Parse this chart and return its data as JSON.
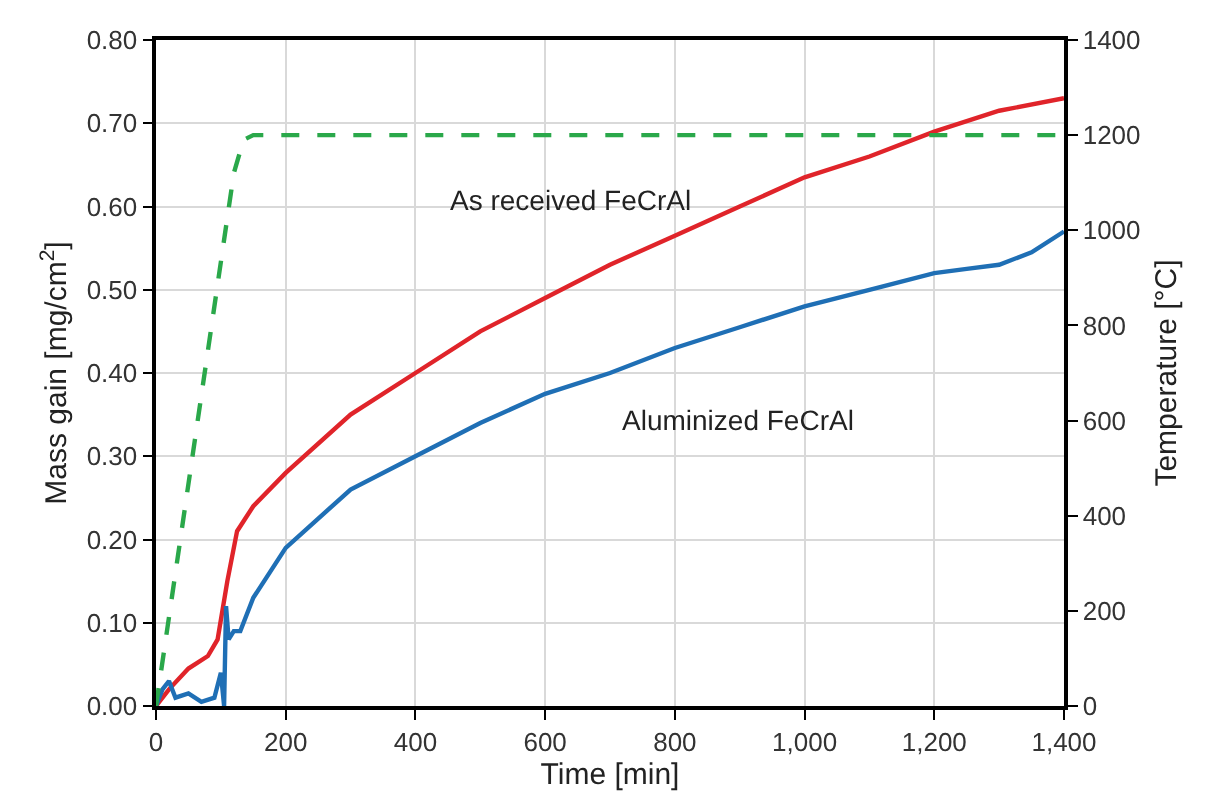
{
  "chart_data": {
    "type": "line",
    "xlabel": "Time [min]",
    "ylabel": "Mass gain [mg/cm$^{2}$]",
    "y2label": "Temperature [°C]",
    "xlim": [
      0,
      1400
    ],
    "xticks": [
      0,
      200,
      400,
      600,
      800,
      {
        "value": 1000,
        "label": "1,000"
      },
      {
        "value": 1200,
        "label": "1,200"
      },
      {
        "value": 1400,
        "label": "1,400"
      }
    ],
    "ylim": [
      0,
      0.8
    ],
    "yticks": [
      {
        "value": 0,
        "label": "0.00"
      },
      {
        "value": 0.1,
        "label": "0.10"
      },
      {
        "value": 0.2,
        "label": "0.20"
      },
      {
        "value": 0.3,
        "label": "0.30"
      },
      {
        "value": 0.4,
        "label": "0.40"
      },
      {
        "value": 0.5,
        "label": "0.50"
      },
      {
        "value": 0.6,
        "label": "0.60"
      },
      {
        "value": 0.7,
        "label": "0.70"
      },
      {
        "value": 0.8,
        "label": "0.80"
      }
    ],
    "y2lim": [
      0,
      1400
    ],
    "y2ticks": [
      0,
      200,
      400,
      600,
      800,
      1000,
      1200,
      1400
    ],
    "grid": true,
    "marker": "none",
    "series": [
      {
        "color": "#2aa84a",
        "axis": "y2",
        "line_style": "dashed",
        "x": [
          0,
          30,
          60,
          90,
          120,
          135,
          150,
          1400
        ],
        "values": [
          0,
          280,
          560,
          840,
          1120,
          1190,
          1200,
          1200
        ]
      },
      {
        "color": "#e0242a",
        "line_style": "solid",
        "x": [
          0,
          20,
          50,
          80,
          95,
          110,
          125,
          150,
          200,
          300,
          400,
          500,
          600,
          700,
          800,
          900,
          1000,
          1100,
          1200,
          1300,
          1400
        ],
        "values": [
          0,
          0.02,
          0.045,
          0.06,
          0.08,
          0.15,
          0.21,
          0.24,
          0.28,
          0.35,
          0.4,
          0.45,
          0.49,
          0.53,
          0.565,
          0.6,
          0.635,
          0.66,
          0.69,
          0.715,
          0.73
        ]
      },
      {
        "color": "#1f6fb5",
        "line_style": "solid",
        "x": [
          0,
          10,
          20,
          30,
          50,
          70,
          90,
          100,
          105,
          108,
          112,
          120,
          130,
          150,
          200,
          300,
          400,
          500,
          600,
          700,
          800,
          900,
          1000,
          1100,
          1200,
          1250,
          1300,
          1350,
          1400
        ],
        "values": [
          0,
          0.02,
          0.03,
          0.01,
          0.015,
          0.005,
          0.01,
          0.04,
          0,
          0.12,
          0.08,
          0.09,
          0.09,
          0.13,
          0.19,
          0.26,
          0.3,
          0.34,
          0.375,
          0.4,
          0.43,
          0.455,
          0.48,
          0.5,
          0.52,
          0.525,
          0.53,
          0.545,
          0.57
        ]
      }
    ],
    "annotations": [
      "As received FeCrAl",
      "Aluminized FeCrAl"
    ]
  }
}
